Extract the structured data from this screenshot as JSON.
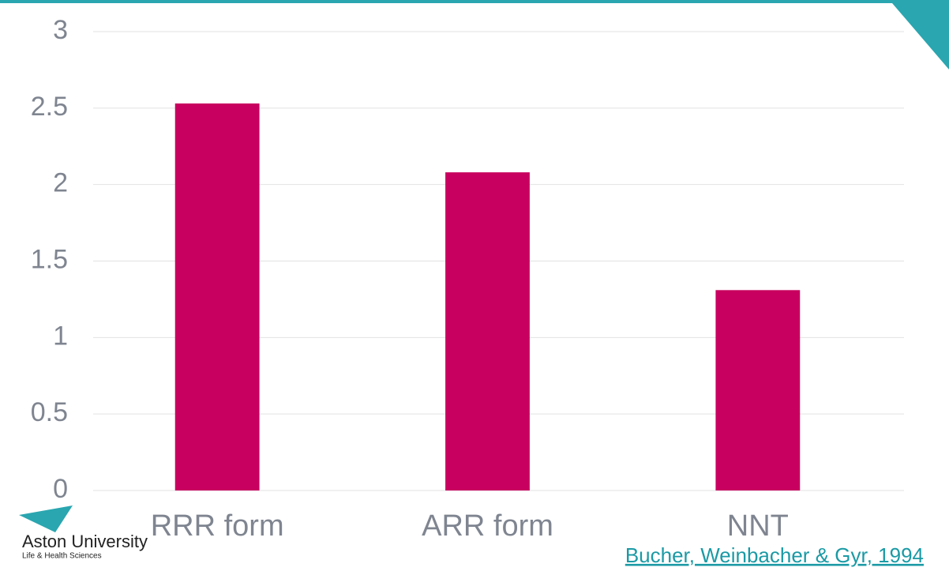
{
  "chart_data": {
    "type": "bar",
    "categories": [
      "RRR form",
      "ARR form",
      "NNT"
    ],
    "values": [
      2.53,
      2.08,
      1.31
    ],
    "color": "#c8005f",
    "ylim": [
      0,
      3
    ],
    "yticks": [
      0,
      0.5,
      1,
      1.5,
      2,
      2.5,
      3
    ],
    "grid": true
  },
  "logo": {
    "name": "Aston University",
    "subtitle": "Life & Health Sciences"
  },
  "citation": "Bucher, Weinbacher & Gyr, 1994"
}
